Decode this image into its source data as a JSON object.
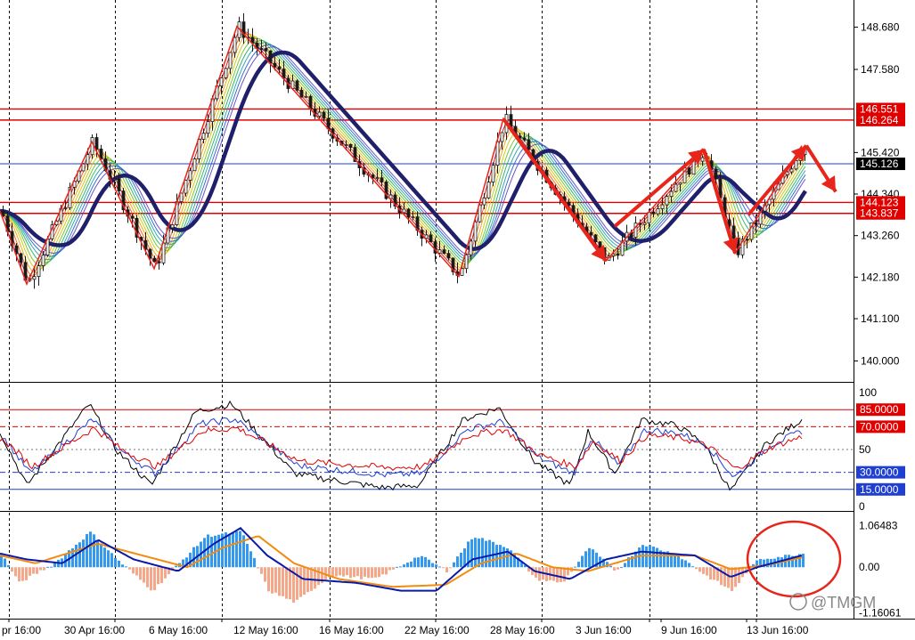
{
  "chart_data": [
    {
      "type": "candlestick",
      "symbol_note": "",
      "price_axis_ticks": [
        "148.680",
        "147.580",
        "145.420",
        "144.340",
        "143.260",
        "142.180",
        "141.100",
        "140.000"
      ],
      "ylim": [
        139.55,
        149.2
      ],
      "levels": [
        {
          "label": "146.551",
          "value": 146.551,
          "color": "#e00000"
        },
        {
          "label": "146.264",
          "value": 146.264,
          "color": "#e00000"
        },
        {
          "label": "145.126",
          "value": 145.126,
          "color": "#1f3fd0"
        },
        {
          "label": "144.123",
          "value": 144.123,
          "color": "#e00000"
        },
        {
          "label": "143.837",
          "value": 143.837,
          "color": "#e00000"
        }
      ],
      "current_price_label": "145.126",
      "zigzag_points": [
        [
          0,
          143.9
        ],
        [
          30,
          142.0
        ],
        [
          103,
          145.7
        ],
        [
          173,
          142.4
        ],
        [
          266,
          148.7
        ],
        [
          358,
          146.3
        ],
        [
          515,
          142.2
        ],
        [
          565,
          146.3
        ],
        [
          680,
          142.6
        ],
        [
          790,
          145.5
        ],
        [
          825,
          142.8
        ],
        [
          900,
          145.6
        ]
      ],
      "arrows": [
        {
          "from": [
            565,
            146.3
          ],
          "to": [
            680,
            142.6
          ]
        },
        {
          "from": [
            690,
            143.5
          ],
          "to": [
            790,
            145.5
          ]
        },
        {
          "from": [
            790,
            145.5
          ],
          "to": [
            825,
            142.8
          ]
        },
        {
          "from": [
            840,
            143.8
          ],
          "to": [
            905,
            145.6
          ]
        },
        {
          "from": [
            905,
            145.6
          ],
          "to": [
            938,
            144.4
          ]
        }
      ]
    },
    {
      "type": "line",
      "name": "stochastic",
      "axis_ticks": [
        "100",
        "50",
        "0"
      ],
      "ylim": [
        0,
        100
      ],
      "levels": [
        {
          "label": "85.0000",
          "value": 85,
          "color": "#e00000"
        },
        {
          "label": "70.0000",
          "value": 70,
          "color": "#e00000"
        },
        {
          "label": "30.0000",
          "value": 30,
          "color": "#1f3fd0"
        },
        {
          "label": "15.0000",
          "value": 15,
          "color": "#1f3fd0"
        }
      ],
      "key_points": [
        [
          0,
          65
        ],
        [
          30,
          20
        ],
        [
          100,
          88
        ],
        [
          130,
          50
        ],
        [
          170,
          20
        ],
        [
          220,
          82
        ],
        [
          260,
          88
        ],
        [
          300,
          55
        ],
        [
          330,
          30
        ],
        [
          370,
          25
        ],
        [
          430,
          18
        ],
        [
          470,
          20
        ],
        [
          520,
          75
        ],
        [
          560,
          85
        ],
        [
          600,
          40
        ],
        [
          640,
          20
        ],
        [
          660,
          65
        ],
        [
          690,
          30
        ],
        [
          720,
          75
        ],
        [
          760,
          70
        ],
        [
          790,
          55
        ],
        [
          820,
          15
        ],
        [
          860,
          55
        ],
        [
          900,
          75
        ]
      ]
    },
    {
      "type": "bar",
      "name": "macd",
      "axis_ticks": [
        "1.06483",
        "0.00",
        "-1.16061"
      ],
      "ylim": [
        -1.2,
        1.12
      ],
      "histogram_points": [
        [
          0,
          0.35
        ],
        [
          20,
          -0.4
        ],
        [
          60,
          0.1
        ],
        [
          100,
          0.9
        ],
        [
          130,
          0.2
        ],
        [
          170,
          -0.6
        ],
        [
          200,
          0.1
        ],
        [
          230,
          0.8
        ],
        [
          270,
          0.9
        ],
        [
          300,
          -0.6
        ],
        [
          330,
          -0.9
        ],
        [
          370,
          -0.2
        ],
        [
          420,
          -0.3
        ],
        [
          470,
          0.3
        ],
        [
          500,
          -0.1
        ],
        [
          530,
          0.8
        ],
        [
          570,
          0.5
        ],
        [
          600,
          -0.3
        ],
        [
          630,
          -0.4
        ],
        [
          660,
          0.5
        ],
        [
          690,
          -0.1
        ],
        [
          720,
          0.6
        ],
        [
          760,
          0.3
        ],
        [
          790,
          -0.2
        ],
        [
          820,
          -0.6
        ],
        [
          850,
          0.2
        ],
        [
          900,
          0.35
        ]
      ],
      "macd_line": [
        [
          0,
          0.35
        ],
        [
          30,
          0.2
        ],
        [
          70,
          0.1
        ],
        [
          110,
          0.7
        ],
        [
          150,
          0.2
        ],
        [
          200,
          -0.1
        ],
        [
          240,
          0.6
        ],
        [
          270,
          1.0
        ],
        [
          300,
          0.3
        ],
        [
          340,
          -0.3
        ],
        [
          400,
          -0.4
        ],
        [
          450,
          -0.6
        ],
        [
          490,
          -0.6
        ],
        [
          530,
          0.2
        ],
        [
          570,
          0.4
        ],
        [
          600,
          -0.1
        ],
        [
          640,
          -0.3
        ],
        [
          680,
          0.2
        ],
        [
          720,
          0.4
        ],
        [
          780,
          0.3
        ],
        [
          820,
          -0.25
        ],
        [
          850,
          0.0
        ],
        [
          900,
          0.3
        ]
      ],
      "signal_line": [
        [
          0,
          0.3
        ],
        [
          40,
          0.1
        ],
        [
          110,
          0.6
        ],
        [
          160,
          0.3
        ],
        [
          210,
          0.0
        ],
        [
          250,
          0.5
        ],
        [
          290,
          0.8
        ],
        [
          330,
          0.1
        ],
        [
          380,
          -0.3
        ],
        [
          440,
          -0.5
        ],
        [
          500,
          -0.45
        ],
        [
          540,
          0.1
        ],
        [
          580,
          0.35
        ],
        [
          620,
          0.0
        ],
        [
          660,
          -0.1
        ],
        [
          720,
          0.3
        ],
        [
          780,
          0.3
        ],
        [
          820,
          -0.05
        ],
        [
          860,
          0.05
        ],
        [
          900,
          0.25
        ]
      ],
      "watermark": "@TMGM"
    }
  ],
  "time_axis_labels": [
    "pr 16:00",
    "30 Apr 16:00",
    "6 May 16:00",
    "12 May 16:00",
    "16 May 16:00",
    "22 May 16:00",
    "28 May 16:00",
    "3 Jun 16:00",
    "9 Jun 16:00",
    "13 Jun 16:00"
  ],
  "colors": {
    "background": "#ffffff",
    "grid": "#000000",
    "bull": "#1a1a1a",
    "bear": "#1a1a1a",
    "ma_slow": "#1f1f6a",
    "annotation": "#e8251b",
    "stoch_main": "#000000",
    "stoch_signal1": "#1f3fd0",
    "stoch_signal2": "#e00000",
    "macd_hist_pos": "#3399ee",
    "macd_hist_neg": "#f4a889",
    "macd_line": "#0a1aa8",
    "signal_line": "#f08c10"
  }
}
